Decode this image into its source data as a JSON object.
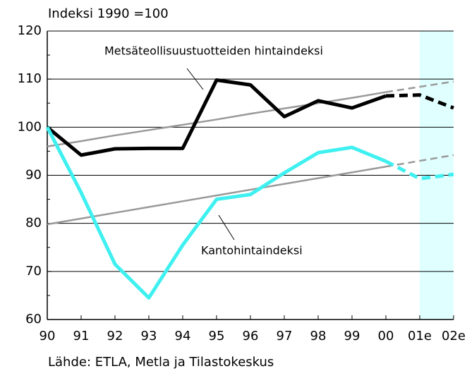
{
  "chart_data": {
    "type": "line",
    "y_label": "Indeksi 1990 =100",
    "source": "Lähde: ETLA, Metla ja Tilastokeskus",
    "categories": [
      "90",
      "91",
      "92",
      "93",
      "94",
      "95",
      "96",
      "97",
      "98",
      "99",
      "00",
      "01e",
      "02e"
    ],
    "series": [
      {
        "name": "Metsäteollisuustuotteiden hintaindeksi",
        "color": "#000000",
        "values": [
          100,
          94.2,
          95.5,
          95.6,
          95.6,
          109.8,
          108.8,
          102.2,
          105.5,
          104,
          106.5,
          106.7,
          104
        ]
      },
      {
        "name": "Kantohintaindeksi",
        "color": "#3ff0f0",
        "values": [
          100,
          86.4,
          71.5,
          64.5,
          75.5,
          85,
          86,
          90.5,
          94.7,
          95.8,
          92.9,
          89.3,
          90.2
        ]
      }
    ],
    "trend_lines": [
      {
        "color": "#999999",
        "values": [
          96,
          97.1,
          98.3,
          99.4,
          100.5,
          101.6,
          102.8,
          103.9,
          105,
          106.1,
          107.3,
          108.4,
          109.5
        ]
      },
      {
        "color": "#999999",
        "values": [
          79.8,
          81,
          82.2,
          83.4,
          84.6,
          85.8,
          87,
          88.2,
          89.4,
          90.6,
          91.8,
          93,
          94.2
        ]
      }
    ],
    "dashed_from_index": 10,
    "shaded_from_index": 11,
    "shade_color": "#e0ffff",
    "ylim": [
      60,
      120
    ],
    "yticks": [
      60,
      70,
      80,
      90,
      100,
      110,
      120
    ],
    "grid": true
  }
}
